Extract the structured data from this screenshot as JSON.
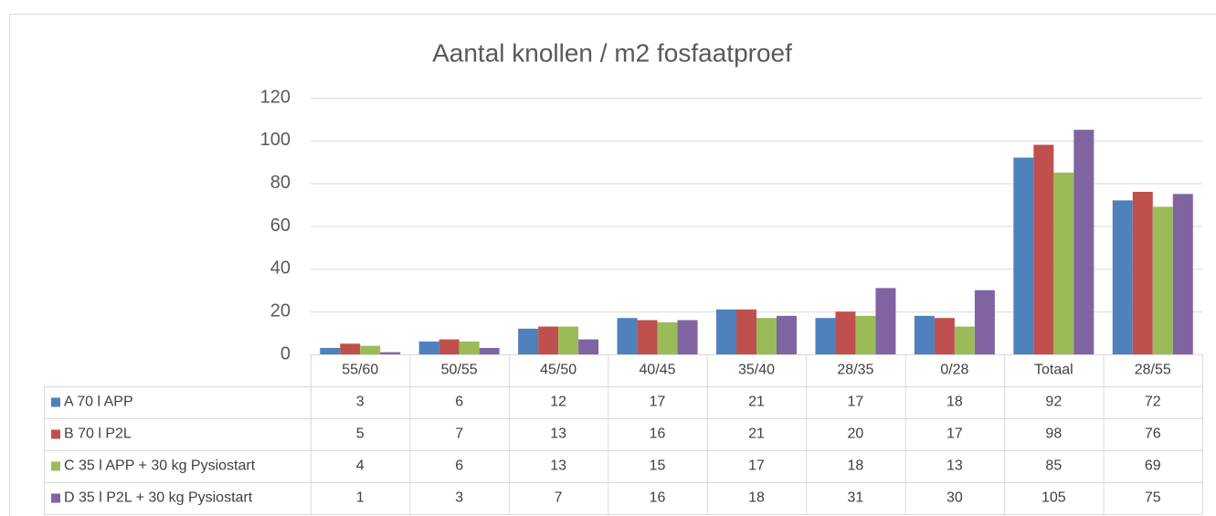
{
  "chart_data": {
    "type": "bar",
    "title": "Aantal knollen / m2 fosfaatproef",
    "categories": [
      "55/60",
      "50/55",
      "45/50",
      "40/45",
      "35/40",
      "28/35",
      "0/28",
      "Totaal",
      "28/55"
    ],
    "series": [
      {
        "name": "A 70 l APP",
        "color": "#4f81bd",
        "values": [
          3,
          6,
          12,
          17,
          21,
          17,
          18,
          92,
          72
        ]
      },
      {
        "name": "B 70 l P2L",
        "color": "#c0504d",
        "values": [
          5,
          7,
          13,
          16,
          21,
          20,
          17,
          98,
          76
        ]
      },
      {
        "name": "C 35 l APP + 30 kg Pysiostart",
        "color": "#9bbb59",
        "values": [
          4,
          6,
          13,
          15,
          17,
          18,
          13,
          85,
          69
        ]
      },
      {
        "name": "D 35 l P2L + 30 kg Pysiostart",
        "color": "#8064a2",
        "values": [
          1,
          3,
          7,
          16,
          18,
          31,
          30,
          105,
          75
        ]
      }
    ],
    "ylim": [
      0,
      120
    ],
    "yticks": [
      0,
      20,
      40,
      60,
      80,
      100,
      120
    ],
    "grid": true,
    "data_table": true
  }
}
